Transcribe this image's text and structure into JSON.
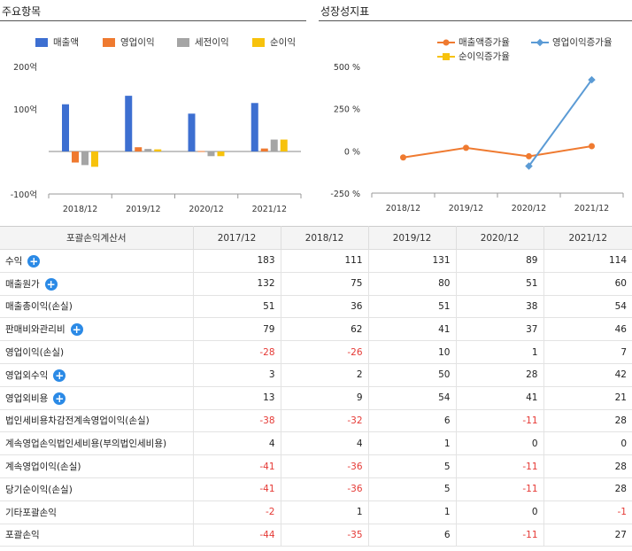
{
  "left_panel": {
    "title": "주요항목",
    "legend": [
      {
        "label": "매출액",
        "color": "#3d6fd1"
      },
      {
        "label": "영업이익",
        "color": "#ef7a30"
      },
      {
        "label": "세전이익",
        "color": "#a5a5a5"
      },
      {
        "label": "순이익",
        "color": "#f7c20c"
      }
    ]
  },
  "right_panel": {
    "title": "성장성지표",
    "legend": [
      {
        "label": "매출액증가율",
        "color": "#ef7a30"
      },
      {
        "label": "영업이익증가율",
        "color": "#5b9bd5"
      },
      {
        "label": "순이익증가율",
        "color": "#f7c20c"
      }
    ]
  },
  "chart_data": [
    {
      "type": "bar",
      "categories": [
        "2018/12",
        "2019/12",
        "2020/12",
        "2021/12"
      ],
      "series": [
        {
          "name": "매출액",
          "values": [
            111,
            131,
            89,
            114
          ]
        },
        {
          "name": "영업이익",
          "values": [
            -26,
            10,
            1,
            7
          ]
        },
        {
          "name": "세전이익",
          "values": [
            -32,
            6,
            -11,
            28
          ]
        },
        {
          "name": "순이익",
          "values": [
            -36,
            5,
            -11,
            28
          ]
        }
      ],
      "y_ticks": [
        "200억",
        "100억",
        "-100억"
      ],
      "ylim": [
        -100,
        200
      ],
      "xlabel": "",
      "ylabel": ""
    },
    {
      "type": "line",
      "categories": [
        "2018/12",
        "2019/12",
        "2020/12",
        "2021/12"
      ],
      "series": [
        {
          "name": "매출액증가율",
          "values": [
            -39,
            18,
            -32,
            28
          ]
        },
        {
          "name": "영업이익증가율",
          "values": [
            null,
            null,
            -90,
            421
          ]
        },
        {
          "name": "순이익증가율",
          "values": [
            null,
            null,
            null,
            null
          ]
        }
      ],
      "y_ticks": [
        "500 %",
        "250 %",
        "0 %",
        "-250 %"
      ],
      "ylim": [
        -250,
        500
      ],
      "xlabel": "",
      "ylabel": ""
    }
  ],
  "table": {
    "header": [
      "포괄손익계산서",
      "2017/12",
      "2018/12",
      "2019/12",
      "2020/12",
      "2021/12"
    ],
    "rows": [
      {
        "label": "수익",
        "expand": true,
        "values": [
          "183",
          "111",
          "131",
          "89",
          "114"
        ]
      },
      {
        "label": "매출원가",
        "expand": true,
        "values": [
          "132",
          "75",
          "80",
          "51",
          "60"
        ]
      },
      {
        "label": "매출총이익(손실)",
        "expand": false,
        "values": [
          "51",
          "36",
          "51",
          "38",
          "54"
        ]
      },
      {
        "label": "판매비와관리비",
        "expand": true,
        "values": [
          "79",
          "62",
          "41",
          "37",
          "46"
        ]
      },
      {
        "label": "영업이익(손실)",
        "expand": false,
        "values": [
          "-28",
          "-26",
          "10",
          "1",
          "7"
        ]
      },
      {
        "label": "영업외수익",
        "expand": true,
        "values": [
          "3",
          "2",
          "50",
          "28",
          "42"
        ]
      },
      {
        "label": "영업외비용",
        "expand": true,
        "values": [
          "13",
          "9",
          "54",
          "41",
          "21"
        ]
      },
      {
        "label": "법인세비용차감전계속영업이익(손실)",
        "expand": false,
        "values": [
          "-38",
          "-32",
          "6",
          "-11",
          "28"
        ]
      },
      {
        "label": "계속영업손익법인세비용(부의법인세비용)",
        "expand": false,
        "values": [
          "4",
          "4",
          "1",
          "0",
          "0"
        ]
      },
      {
        "label": "계속영업이익(손실)",
        "expand": false,
        "values": [
          "-41",
          "-36",
          "5",
          "-11",
          "28"
        ]
      },
      {
        "label": "당기순이익(손실)",
        "expand": false,
        "values": [
          "-41",
          "-36",
          "5",
          "-11",
          "28"
        ]
      },
      {
        "label": "기타포괄손익",
        "expand": false,
        "values": [
          "-2",
          "1",
          "1",
          "0",
          "-1"
        ]
      },
      {
        "label": "포괄손익",
        "expand": false,
        "values": [
          "-44",
          "-35",
          "6",
          "-11",
          "27"
        ]
      }
    ]
  }
}
